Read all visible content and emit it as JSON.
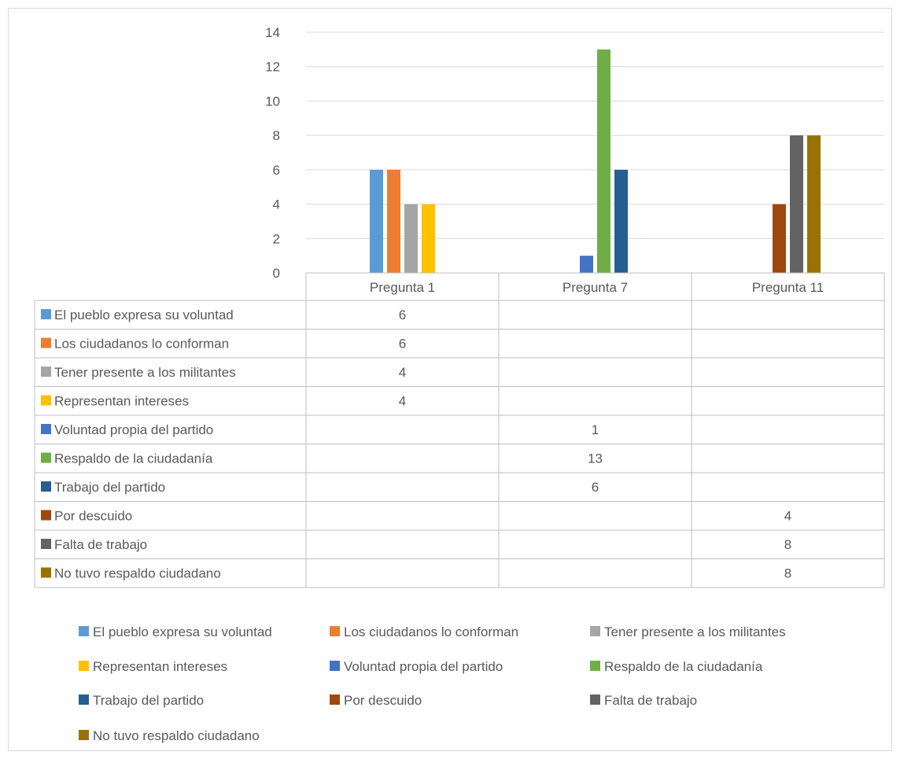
{
  "chart_data": {
    "type": "bar",
    "title": "",
    "xlabel": "",
    "ylabel": "",
    "ylim": [
      0,
      14
    ],
    "yticks": [
      0,
      2,
      4,
      6,
      8,
      10,
      12,
      14
    ],
    "grid": true,
    "legend_position": "bottom",
    "data_table": true,
    "categories": [
      "Pregunta 1",
      "Pregunta 7",
      "Pregunta 11"
    ],
    "series": [
      {
        "name": "El pueblo expresa su voluntad",
        "color": "#5B9BD5",
        "values": [
          6,
          null,
          null
        ]
      },
      {
        "name": "Los ciudadanos lo conforman",
        "color": "#ED7D31",
        "values": [
          6,
          null,
          null
        ]
      },
      {
        "name": "Tener presente a los militantes",
        "color": "#A5A5A5",
        "values": [
          4,
          null,
          null
        ]
      },
      {
        "name": "Representan intereses",
        "color": "#FFC000",
        "values": [
          4,
          null,
          null
        ]
      },
      {
        "name": "Voluntad propia del partido",
        "color": "#4472C4",
        "values": [
          null,
          1,
          null
        ]
      },
      {
        "name": "Respaldo de la ciudadanía",
        "color": "#70AD47",
        "values": [
          null,
          13,
          null
        ]
      },
      {
        "name": "Trabajo del partido",
        "color": "#255E91",
        "values": [
          null,
          6,
          null
        ]
      },
      {
        "name": "Por descuido",
        "color": "#9E480E",
        "values": [
          null,
          null,
          4
        ]
      },
      {
        "name": "Falta de trabajo",
        "color": "#636363",
        "values": [
          null,
          null,
          8
        ]
      },
      {
        "name": "No tuvo respaldo ciudadano",
        "color": "#997300",
        "values": [
          null,
          null,
          8
        ]
      }
    ]
  }
}
